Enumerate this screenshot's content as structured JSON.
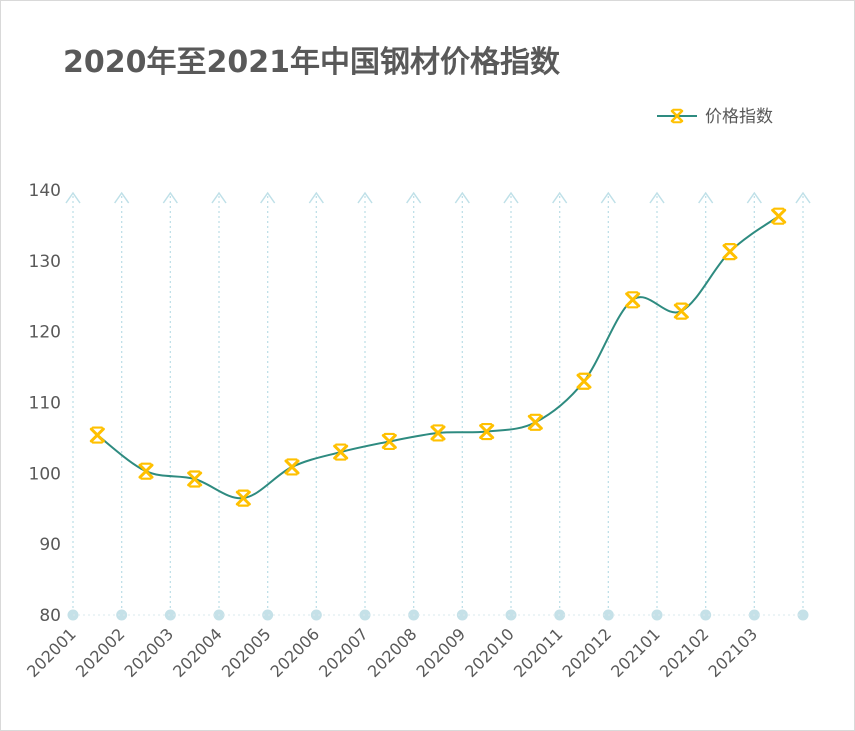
{
  "chart_data": {
    "type": "line",
    "title": "2020年至2021年中国钢材价格指数",
    "categories": [
      "202001",
      "202002",
      "202003",
      "202004",
      "202005",
      "202006",
      "202007",
      "202008",
      "202009",
      "202010",
      "202011",
      "202012",
      "202101",
      "202102",
      "202103"
    ],
    "series": [
      {
        "name": "价格指数",
        "values": [
          105.4,
          100.3,
          99.2,
          96.5,
          100.9,
          103.0,
          104.5,
          105.7,
          105.9,
          107.2,
          113.0,
          124.5,
          122.9,
          131.3,
          136.3
        ],
        "color": "#2e8b80",
        "marker_color": "#ffc000"
      }
    ],
    "ylim": [
      80,
      140
    ],
    "yticks": [
      80,
      90,
      100,
      110,
      120,
      130,
      140
    ],
    "grid": "vertical dotted drop lines",
    "legend": "top-right",
    "drop_line_color": "#bfe0e8"
  }
}
